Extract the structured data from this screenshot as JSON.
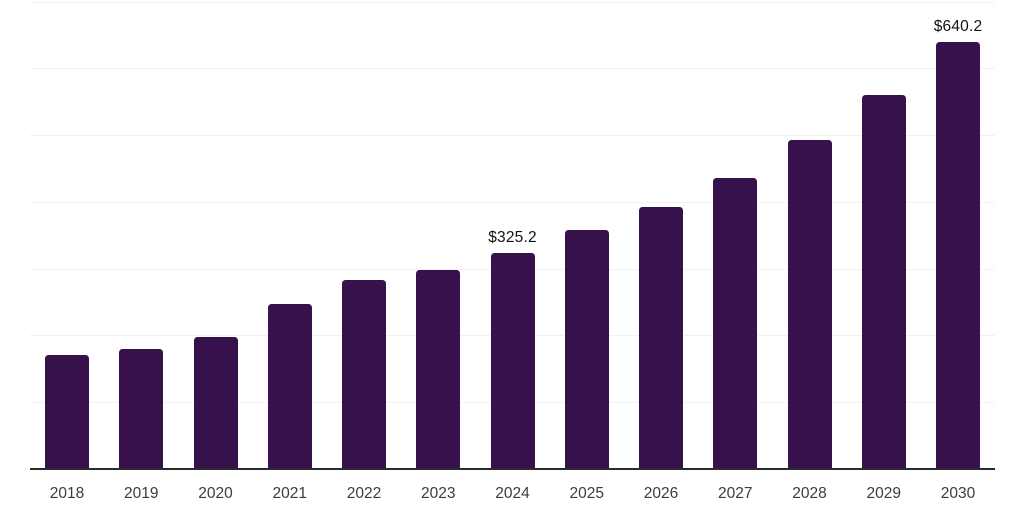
{
  "chart_data": {
    "type": "bar",
    "title": "",
    "xlabel": "",
    "ylabel": "",
    "categories": [
      "2018",
      "2019",
      "2020",
      "2021",
      "2022",
      "2023",
      "2024",
      "2025",
      "2026",
      "2027",
      "2028",
      "2029",
      "2030"
    ],
    "values": [
      173,
      182,
      199,
      248,
      285,
      299,
      325.2,
      359,
      394,
      438,
      494,
      562,
      640.2
    ],
    "annotations": [
      {
        "category": "2024",
        "text": "$325.2"
      },
      {
        "category": "2030",
        "text": "$640.2"
      }
    ],
    "ylim": [
      0,
      700
    ],
    "gridline_values": [
      100,
      200,
      300,
      400,
      500,
      600,
      700
    ],
    "grid": "horizontal only, no y-axis tick labels",
    "legend": "none",
    "colors": {
      "bar_fill": "#36114B",
      "axis_line": "#2b2b2b",
      "gridline": "#f1f1f2",
      "data_label_text": "#131313",
      "tick_label_text": "#3c3c3c",
      "background": "#ffffff"
    }
  }
}
